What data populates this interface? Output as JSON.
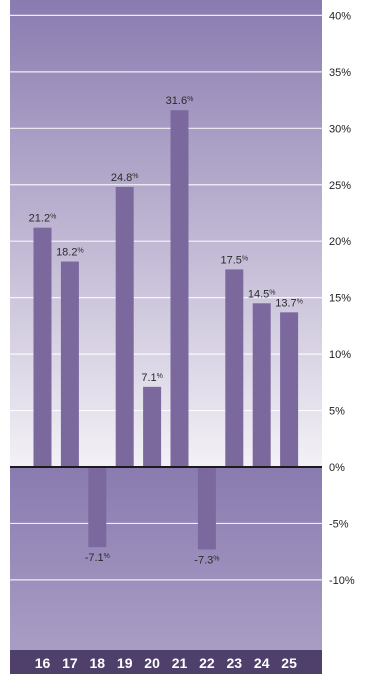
{
  "chart_data": {
    "type": "bar",
    "categories": [
      "16",
      "17",
      "18",
      "19",
      "20",
      "21",
      "22",
      "23",
      "24",
      "25"
    ],
    "values": [
      21.2,
      18.2,
      -7.1,
      24.8,
      7.1,
      31.6,
      -7.3,
      17.5,
      14.5,
      13.7
    ],
    "value_labels": [
      "21.2%",
      "18.2%",
      "-7.1%",
      "24.8%",
      "7.1%",
      "31.6%",
      "-7.3%",
      "17.5%",
      "14.5%",
      "13.7%"
    ],
    "y_ticks": [
      -10,
      -5,
      0,
      5,
      10,
      15,
      20,
      25,
      30,
      35,
      40
    ],
    "y_tick_labels": [
      "-10%",
      "-5%",
      "0%",
      "5%",
      "10%",
      "15%",
      "20%",
      "25%",
      "30%",
      "35%",
      "40%"
    ],
    "ylim": [
      -16.5,
      41.6
    ],
    "grid": true,
    "y_axis_position": "right",
    "title": "",
    "xlabel": "",
    "ylabel": ""
  },
  "colors": {
    "bar": "#7b699e",
    "background_top": "#8a7bb0",
    "background_mid": "#f2f0f5",
    "background_negative": "#9a8cbb",
    "axis_strip": "#4e3f6b",
    "category_text": "#ffffff",
    "label_text": "#2b2b2b",
    "gridline": "#ffffff",
    "zero_line": "#1a1a1a"
  }
}
